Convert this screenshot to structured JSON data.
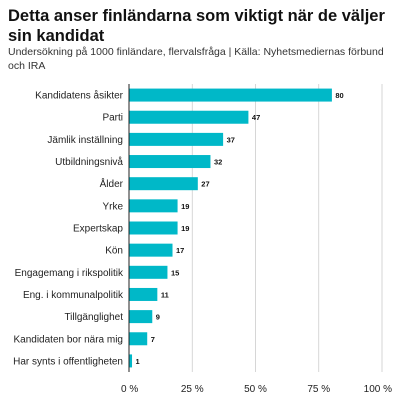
{
  "title": "Detta anser finländarna som viktigt när de väljer sin kandidat",
  "subtitle": "Undersökning på 1000 finländare, flervalsfråga | Källa: Nyhetsmediernas förbund och IRA",
  "colors": {
    "bar": "#00b8c8",
    "grid": "#cccccc",
    "axis": "#222222"
  },
  "chart_data": {
    "type": "bar",
    "orientation": "horizontal",
    "categories": [
      "Kandidatens åsikter",
      "Parti",
      "Jämlik inställning",
      "Utbildningsnivå",
      "Ålder",
      "Yrke",
      "Expertskap",
      "Kön",
      "Engagemang i rikspolitik",
      "Eng. i kommunalpolitik",
      "Tillgänglighet",
      "Kandidaten bor nära mig",
      "Har synts i offentligheten"
    ],
    "values": [
      80,
      47,
      37,
      32,
      27,
      19,
      19,
      17,
      15,
      11,
      9,
      7,
      1
    ],
    "value_labels": [
      "80",
      "47",
      "37",
      "32",
      "27",
      "19",
      "19",
      "17",
      "15",
      "11",
      "9",
      "7",
      "1"
    ],
    "xlim": [
      0,
      100
    ],
    "xticks": [
      0,
      25,
      50,
      75,
      100
    ],
    "xtick_labels": [
      "0 %",
      "25 %",
      "50 %",
      "75 %",
      "100 %"
    ],
    "grid": true
  }
}
